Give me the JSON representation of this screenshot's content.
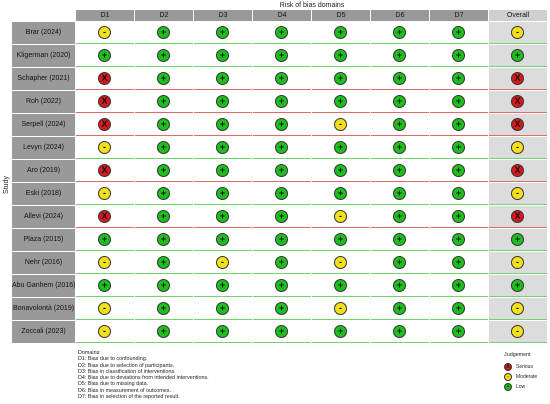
{
  "title": "Risk of bias domains",
  "y_axis_label": "Study",
  "columns": [
    "D1",
    "D2",
    "D3",
    "D4",
    "D5",
    "D6",
    "D7",
    "Overall"
  ],
  "symbols": {
    "low": "+",
    "some": "-",
    "high": "X"
  },
  "colors": {
    "low": "#1dbf1d",
    "some": "#f2e01c",
    "high": "#d61a1a",
    "label_bg": "#999999",
    "overall_bg": "#dcdcdc"
  },
  "studies": [
    {
      "name": "Brar (2024)",
      "judgements": [
        "some",
        "low",
        "low",
        "low",
        "low",
        "low",
        "low",
        "some"
      ]
    },
    {
      "name": "Kligerman  (2020)",
      "judgements": [
        "low",
        "low",
        "low",
        "low",
        "low",
        "low",
        "low",
        "low"
      ]
    },
    {
      "name": "Schapher (2021)",
      "judgements": [
        "high",
        "low",
        "low",
        "low",
        "low",
        "low",
        "low",
        "high"
      ]
    },
    {
      "name": "Roh (2022)",
      "judgements": [
        "high",
        "low",
        "low",
        "low",
        "low",
        "low",
        "low",
        "high"
      ]
    },
    {
      "name": "Serpell  (2024)",
      "judgements": [
        "high",
        "low",
        "low",
        "low",
        "some",
        "low",
        "low",
        "high"
      ]
    },
    {
      "name": "Levyn (2024)",
      "judgements": [
        "some",
        "low",
        "low",
        "low",
        "low",
        "low",
        "low",
        "some"
      ]
    },
    {
      "name": "Aro (2019)",
      "judgements": [
        "high",
        "low",
        "low",
        "low",
        "low",
        "low",
        "low",
        "high"
      ]
    },
    {
      "name": "Eski (2018)",
      "judgements": [
        "some",
        "low",
        "low",
        "low",
        "low",
        "low",
        "low",
        "some"
      ]
    },
    {
      "name": "Allevi (2024)",
      "judgements": [
        "high",
        "low",
        "low",
        "low",
        "some",
        "low",
        "low",
        "high"
      ]
    },
    {
      "name": "Plaza  (2015)",
      "judgements": [
        "low",
        "low",
        "low",
        "low",
        "low",
        "low",
        "low",
        "low"
      ]
    },
    {
      "name": "Nehr (2016)",
      "judgements": [
        "some",
        "low",
        "some",
        "low",
        "some",
        "low",
        "low",
        "some"
      ]
    },
    {
      "name": "Abu Ganhem (2016)",
      "judgements": [
        "low",
        "low",
        "low",
        "low",
        "low",
        "low",
        "low",
        "low"
      ]
    },
    {
      "name": "Bonavolontà (2019)",
      "judgements": [
        "some",
        "low",
        "low",
        "low",
        "some",
        "low",
        "low",
        "some"
      ]
    },
    {
      "name": "Zoccali (2023)",
      "judgements": [
        "some",
        "low",
        "low",
        "low",
        "low",
        "low",
        "low",
        "some"
      ]
    }
  ],
  "domains_key": {
    "heading": "Domains:",
    "items": [
      "D1: Bias due to confounding.",
      "D2: Bias due to selection of participants.",
      "D3: Bias in classification of interventions.",
      "D4: Bias due to deviations from intended interventions.",
      "D5: Bias due to missing data.",
      "D6: Bias in measurement of outcomes.",
      "D7: Bias in selection of the reported result."
    ]
  },
  "legend": {
    "title": "Judgement",
    "items": [
      {
        "level": "high",
        "label": "Serious"
      },
      {
        "level": "some",
        "label": "Moderate"
      },
      {
        "level": "low",
        "label": "Low"
      }
    ]
  }
}
